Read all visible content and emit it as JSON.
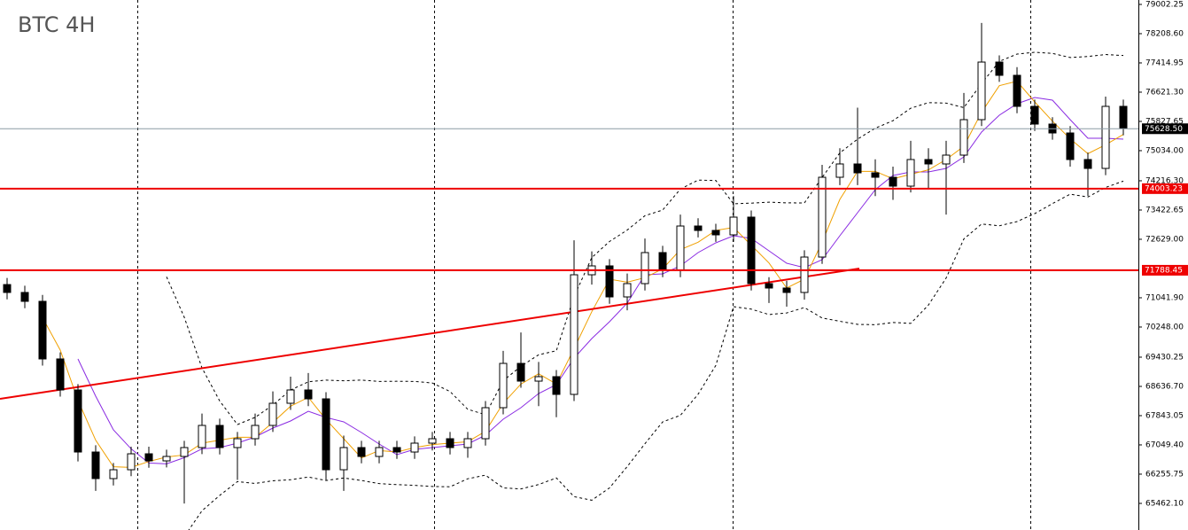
{
  "chart_data": {
    "type": "candlestick",
    "title": "BTC 4H",
    "ylim": [
      64740,
      79122
    ],
    "yticks": [
      {
        "value": 79002.25,
        "label": "79002.25"
      },
      {
        "value": 78208.6,
        "label": "78208.60"
      },
      {
        "value": 77414.95,
        "label": "77414.95"
      },
      {
        "value": 76621.3,
        "label": "76621.30"
      },
      {
        "value": 75827.65,
        "label": "75827.65"
      },
      {
        "value": 75034,
        "label": "75034.00"
      },
      {
        "value": 74216.3,
        "label": "74216.30"
      },
      {
        "value": 73422.65,
        "label": "73422.65"
      },
      {
        "value": 72629,
        "label": "72629.00"
      },
      {
        "value": 71041.9,
        "label": "71041.90"
      },
      {
        "value": 70248,
        "label": "70248.00"
      },
      {
        "value": 69430.25,
        "label": "69430.25"
      },
      {
        "value": 68636.7,
        "label": "68636.70"
      },
      {
        "value": 67843.05,
        "label": "67843.05"
      },
      {
        "value": 67049.4,
        "label": "67049.40"
      },
      {
        "value": 66255.75,
        "label": "66255.75"
      },
      {
        "value": 65462.1,
        "label": "65462.10"
      }
    ],
    "open": [
      71400,
      71186,
      70945,
      69382,
      68540,
      66856,
      66135,
      66375,
      66808,
      66616,
      66736,
      66977,
      67578,
      66977,
      67217,
      67578,
      68179,
      68540,
      68299,
      66375,
      66977,
      66736,
      66977,
      66856,
      67097,
      67217,
      66977,
      67217,
      68059,
      69261,
      68780,
      68901,
      68420,
      71666,
      71907,
      71065,
      71426,
      72268,
      71787,
      72989,
      72869,
      72749,
      73230,
      71426,
      71306,
      71186,
      72147,
      74312,
      74673,
      74432,
      74312,
      74071,
      74793,
      74673,
      74913,
      75875,
      77438,
      77078,
      76236,
      75755,
      75514,
      74793,
      74552,
      76236
    ],
    "high": [
      71580,
      71370,
      71120,
      69560,
      68700,
      67040,
      66560,
      67000,
      67000,
      66920,
      67160,
      67900,
      67760,
      67400,
      67900,
      68500,
      68900,
      69000,
      68480,
      67300,
      67160,
      67160,
      67160,
      67280,
      67400,
      67400,
      67400,
      68240,
      69600,
      70100,
      69300,
      69080,
      72600,
      72300,
      72090,
      71700,
      72650,
      72450,
      73300,
      73200,
      73050,
      73800,
      73410,
      71600,
      71500,
      72330,
      74650,
      75100,
      76200,
      74800,
      74600,
      75300,
      75100,
      75300,
      76600,
      78500,
      77620,
      77300,
      76420,
      75940,
      75700,
      74980,
      76500,
      76420
    ],
    "low": [
      71000,
      70760,
      69200,
      68360,
      66600,
      65800,
      65950,
      66200,
      66430,
      66440,
      65460,
      66800,
      66790,
      66100,
      67030,
      67400,
      68000,
      68100,
      66100,
      65800,
      66550,
      66550,
      66670,
      66670,
      66900,
      66790,
      66700,
      67030,
      67880,
      68600,
      68100,
      67800,
      68240,
      71400,
      70880,
      70700,
      71240,
      71600,
      71600,
      72680,
      72560,
      72560,
      71240,
      70900,
      70800,
      70990,
      71960,
      74100,
      74100,
      73800,
      73700,
      73900,
      74000,
      73300,
      74700,
      75700,
      76900,
      76050,
      75570,
      75330,
      74600,
      73800,
      74370,
      75450
    ],
    "close": [
      71186,
      70945,
      69382,
      68540,
      66856,
      66135,
      66375,
      66808,
      66616,
      66736,
      66977,
      67578,
      66977,
      67217,
      67578,
      68179,
      68540,
      68299,
      66375,
      66977,
      66736,
      66977,
      66856,
      67097,
      67217,
      66977,
      67217,
      68059,
      69261,
      68780,
      68901,
      68420,
      71666,
      71907,
      71065,
      71426,
      72268,
      71787,
      72989,
      72869,
      72749,
      73230,
      71426,
      71306,
      71186,
      72147,
      74312,
      74673,
      74432,
      74312,
      74071,
      74793,
      74673,
      74913,
      75875,
      77438,
      77078,
      76236,
      75755,
      75514,
      74793,
      74552,
      76236,
      75635
    ],
    "price_lines": [
      {
        "value": 75628.5,
        "label": "75628.50",
        "color": "#8a9aa4",
        "label_color": "#000000"
      },
      {
        "value": 74003.23,
        "label": "74003.23",
        "color": "#ee0000",
        "label_color": "#ee0000"
      },
      {
        "value": 71788.45,
        "label": "71788.45",
        "color": "#ee0000",
        "label_color": "#ee0000"
      }
    ],
    "trendline": {
      "color": "#ee0000",
      "from": {
        "index": -0.4,
        "value": 68300
      },
      "to": {
        "index": 48.1,
        "value": 71835
      }
    }
  }
}
